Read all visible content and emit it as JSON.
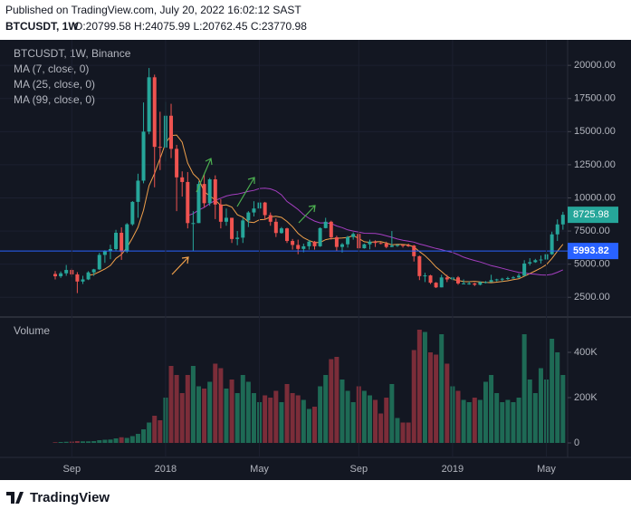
{
  "header": {
    "published": "Published on TradingView.com, July 20, 2022 16:02:12 SAST",
    "symbol": "BTCUSDT, 1W",
    "ohlc": "O:20799.58 H:24075.99 L:20762.45 C:23770.98"
  },
  "logo": "TradingView",
  "chart_data": [
    {
      "type": "candlestick",
      "title": "BTCUSDT, 1W, Binance",
      "up_color": "#26a69a",
      "down_color": "#ef5350",
      "open": [
        4261,
        4086,
        4310,
        4565,
        4228,
        3690,
        3850,
        4380,
        4610,
        5700,
        5980,
        6140,
        7370,
        5950,
        8010,
        9700,
        11300,
        15000,
        19100,
        13850,
        13800,
        16200,
        13700,
        11550,
        11200,
        8100,
        8100,
        11050,
        9600,
        11400,
        9500,
        8200,
        8500,
        6900,
        7000,
        8300,
        8900,
        9200,
        9650,
        8700,
        8200,
        7350,
        7700,
        6750,
        6450,
        6150,
        6350,
        6700,
        6350,
        7720,
        8200,
        7030,
        6300,
        6500,
        7050,
        7280,
        6200,
        6500,
        6700,
        6600,
        6550,
        6300,
        6400,
        6450,
        6420,
        6400,
        5600,
        4100,
        4150,
        3600,
        3250,
        4000,
        3850,
        4000,
        3550,
        3550,
        3550,
        3450,
        3650,
        3650,
        3800,
        3850,
        3900,
        3950,
        4000,
        4130,
        5050,
        5150,
        5300,
        5350,
        5750,
        7250,
        8000
      ],
      "high": [
        4485,
        4453,
        4939,
        4688,
        4399,
        4123,
        4470,
        4650,
        5856,
        6050,
        6470,
        7590,
        7776,
        8100,
        9760,
        11825,
        17200,
        19800,
        19300,
        16500,
        17250,
        17100,
        14000,
        12000,
        11950,
        9000,
        11250,
        11800,
        11500,
        11700,
        9900,
        9200,
        8500,
        7500,
        8500,
        9000,
        9750,
        9950,
        9700,
        8900,
        8450,
        7800,
        7750,
        6900,
        6850,
        6550,
        6830,
        6750,
        7780,
        8500,
        8280,
        7150,
        6600,
        7140,
        7400,
        7400,
        6550,
        6850,
        6800,
        6650,
        6700,
        7500,
        6500,
        6500,
        6550,
        6450,
        5650,
        4350,
        4200,
        3650,
        4200,
        4200,
        4100,
        4100,
        3850,
        3700,
        3600,
        3700,
        3720,
        4200,
        3900,
        3970,
        4050,
        4100,
        4300,
        5300,
        5450,
        5400,
        5650,
        5900,
        7450,
        8380,
        8950
      ],
      "low": [
        3850,
        3960,
        4124,
        4040,
        2817,
        3505,
        3800,
        4110,
        4570,
        5100,
        5375,
        6030,
        5325,
        5850,
        7900,
        8500,
        11100,
        14800,
        10800,
        12100,
        12750,
        13000,
        9000,
        10100,
        7700,
        6000,
        8100,
        9300,
        9400,
        8400,
        7700,
        7900,
        6600,
        6430,
        6600,
        7800,
        8600,
        8950,
        8350,
        7900,
        7050,
        7300,
        6600,
        6100,
        5750,
        5900,
        6100,
        6100,
        6300,
        7700,
        6850,
        6000,
        5880,
        6250,
        6850,
        6100,
        6170,
        6120,
        6300,
        6500,
        6200,
        6280,
        6300,
        6250,
        6300,
        5200,
        3800,
        3650,
        3500,
        3200,
        3250,
        3650,
        3700,
        3450,
        3500,
        3450,
        3350,
        3400,
        3550,
        3650,
        3700,
        3700,
        3800,
        3900,
        3950,
        4100,
        4900,
        5100,
        5050,
        5350,
        5700,
        6750,
        7600
      ],
      "close": [
        4086,
        4310,
        4565,
        4228,
        3690,
        3850,
        4380,
        4610,
        5700,
        5980,
        6140,
        7370,
        5950,
        8010,
        9700,
        11300,
        15000,
        19100,
        13850,
        13800,
        16200,
        13700,
        11550,
        11200,
        8100,
        8100,
        11050,
        9600,
        11400,
        9500,
        8200,
        8500,
        6900,
        7000,
        8300,
        8900,
        9200,
        9650,
        8700,
        8200,
        7350,
        7700,
        6750,
        6450,
        6150,
        6350,
        6700,
        6350,
        7720,
        8200,
        7030,
        6300,
        6500,
        7050,
        7280,
        6200,
        6500,
        6700,
        6600,
        6550,
        6300,
        6400,
        6450,
        6420,
        6400,
        5600,
        4100,
        4150,
        3600,
        3250,
        4000,
        3850,
        4000,
        3550,
        3550,
        3550,
        3450,
        3650,
        3650,
        3800,
        3850,
        3900,
        3950,
        4000,
        4130,
        5050,
        5150,
        5300,
        5350,
        5750,
        7250,
        8000,
        8725.98
      ],
      "indicators": [
        {
          "name": "MA (7, close, 0)",
          "period": 7,
          "color": "#f0a04b"
        },
        {
          "name": "MA (25, close, 0)",
          "period": 25,
          "color": "#a43ec0"
        },
        {
          "name": "MA (99, close, 0)",
          "period": 99,
          "color": "#2196f3"
        }
      ],
      "price_line": 5993.82,
      "price_line_color": "#2962ff",
      "ylim": [
        1150,
        21650
      ],
      "yticks": [
        {
          "value": 2500,
          "label": "2500.00"
        },
        {
          "value": 5000,
          "label": "5000.00"
        },
        {
          "value": 7500,
          "label": "7500.00"
        },
        {
          "value": 10000,
          "label": "10000.00"
        },
        {
          "value": 12500,
          "label": "12500.00"
        },
        {
          "value": 15000,
          "label": "15000.00"
        },
        {
          "value": 17500,
          "label": "17500.00"
        },
        {
          "value": 20000,
          "label": "20000.00"
        }
      ]
    },
    {
      "type": "volume",
      "title": "Volume",
      "categories": [
        null,
        null,
        null,
        "Sep",
        null,
        null,
        null,
        null,
        null,
        null,
        null,
        null,
        null,
        null,
        null,
        null,
        null,
        null,
        null,
        null,
        "2018",
        null,
        null,
        null,
        null,
        null,
        null,
        null,
        null,
        null,
        null,
        null,
        null,
        null,
        null,
        null,
        null,
        "May",
        null,
        null,
        null,
        null,
        null,
        null,
        null,
        null,
        null,
        null,
        null,
        null,
        null,
        null,
        null,
        null,
        null,
        "Sep",
        null,
        null,
        null,
        null,
        null,
        null,
        null,
        null,
        null,
        null,
        null,
        null,
        null,
        null,
        null,
        null,
        "2019",
        null,
        null,
        null,
        null,
        null,
        null,
        null,
        null,
        null,
        null,
        null,
        null,
        null,
        null,
        null,
        null,
        "May",
        null,
        null,
        null
      ],
      "values": [
        3,
        4,
        5,
        6,
        8,
        7,
        7,
        8,
        12,
        14,
        15,
        20,
        25,
        22,
        30,
        40,
        60,
        90,
        120,
        100,
        200,
        340,
        300,
        220,
        300,
        340,
        250,
        240,
        270,
        350,
        330,
        240,
        280,
        220,
        300,
        270,
        220,
        180,
        210,
        200,
        230,
        180,
        260,
        220,
        210,
        190,
        150,
        160,
        250,
        300,
        370,
        380,
        280,
        230,
        180,
        250,
        230,
        210,
        190,
        130,
        200,
        260,
        110,
        90,
        90,
        410,
        500,
        490,
        400,
        390,
        480,
        350,
        250,
        230,
        190,
        180,
        200,
        190,
        270,
        300,
        220,
        180,
        190,
        180,
        200,
        480,
        280,
        220,
        330,
        280,
        460,
        400,
        300
      ],
      "up_color": "#1e6a55",
      "down_color": "#7b2d39",
      "ylim": [
        -64,
        548
      ],
      "yticks": [
        0,
        {
          "value": 200,
          "label": "200K"
        },
        {
          "value": 400,
          "label": "400K"
        }
      ]
    }
  ]
}
